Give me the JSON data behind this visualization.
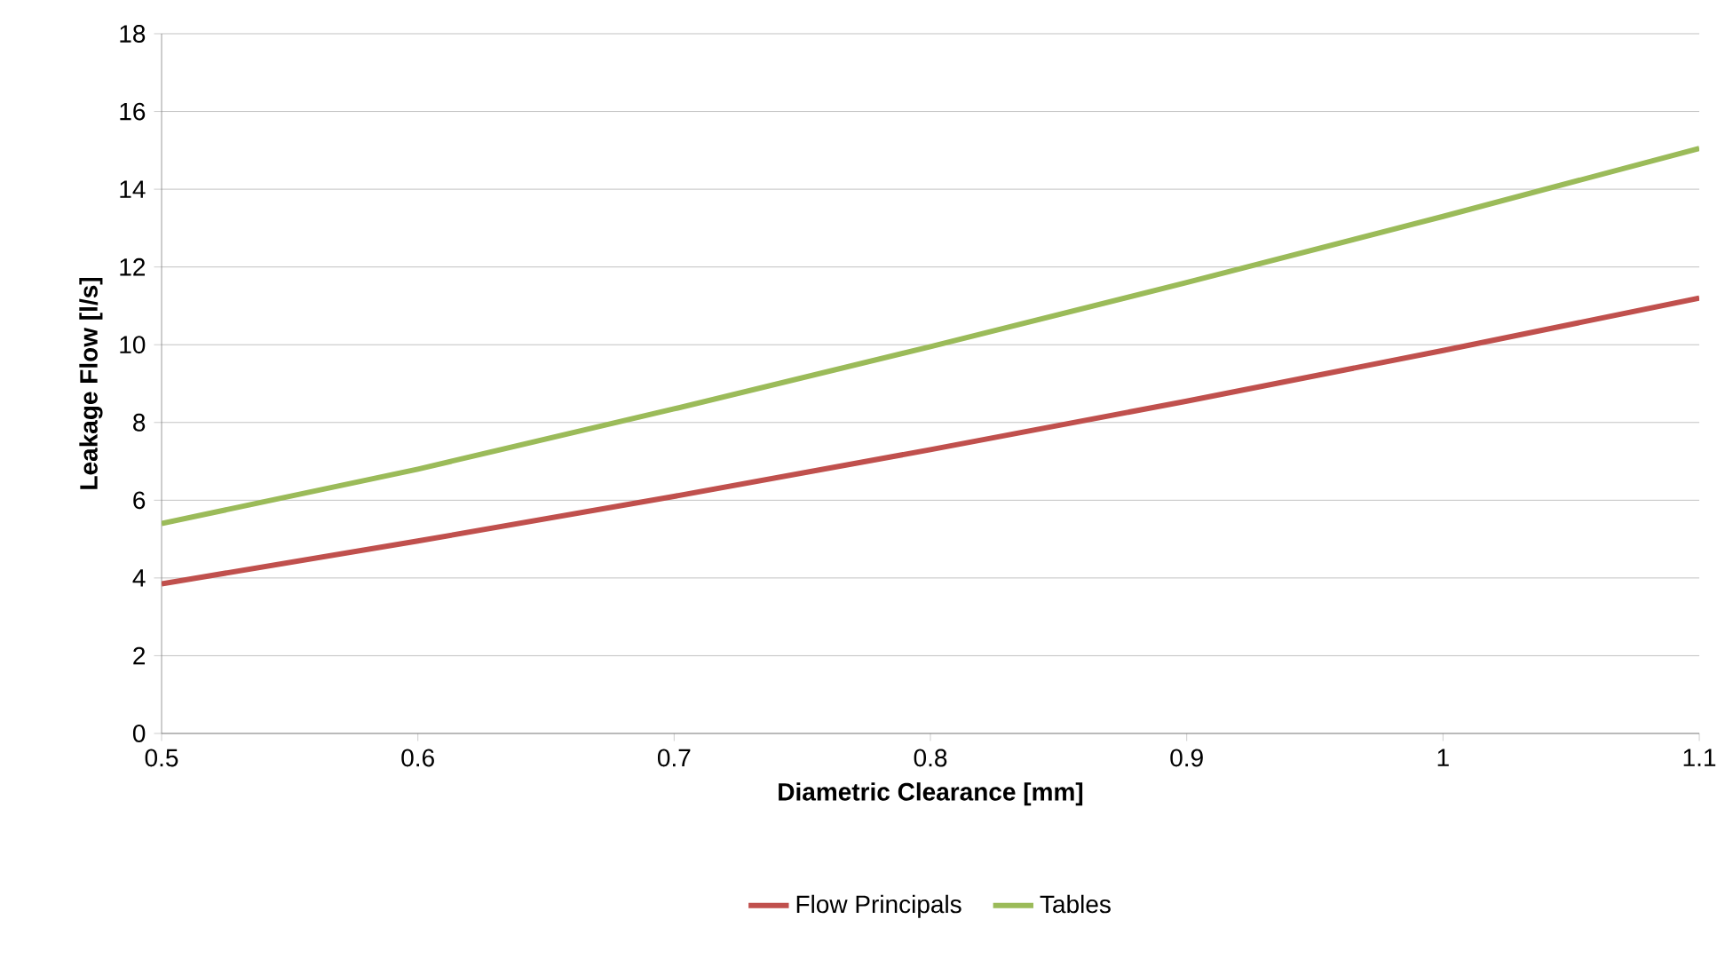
{
  "chart_data": {
    "type": "line",
    "xlabel": "Diametric Clearance [mm]",
    "ylabel": "Leakage Flow [l/s]",
    "x": [
      0.5,
      0.6,
      0.7,
      0.8,
      0.9,
      1,
      1.1
    ],
    "series": [
      {
        "name": "Flow Principals",
        "color": "#c0504d",
        "values": [
          3.85,
          4.95,
          6.1,
          7.3,
          8.55,
          9.85,
          11.2
        ]
      },
      {
        "name": "Tables",
        "color": "#9bbb59",
        "values": [
          5.4,
          6.8,
          8.35,
          9.95,
          11.6,
          13.3,
          15.05
        ]
      }
    ],
    "xlim": [
      0.5,
      1.1
    ],
    "ylim": [
      0,
      18
    ],
    "xticks": [
      0.5,
      0.6,
      0.7,
      0.8,
      0.9,
      1,
      1.1
    ],
    "yticks": [
      0,
      2,
      4,
      6,
      8,
      10,
      12,
      14,
      16,
      18
    ],
    "grid": "y",
    "legend": "bottom",
    "marker": "none",
    "line_style": "solid"
  }
}
